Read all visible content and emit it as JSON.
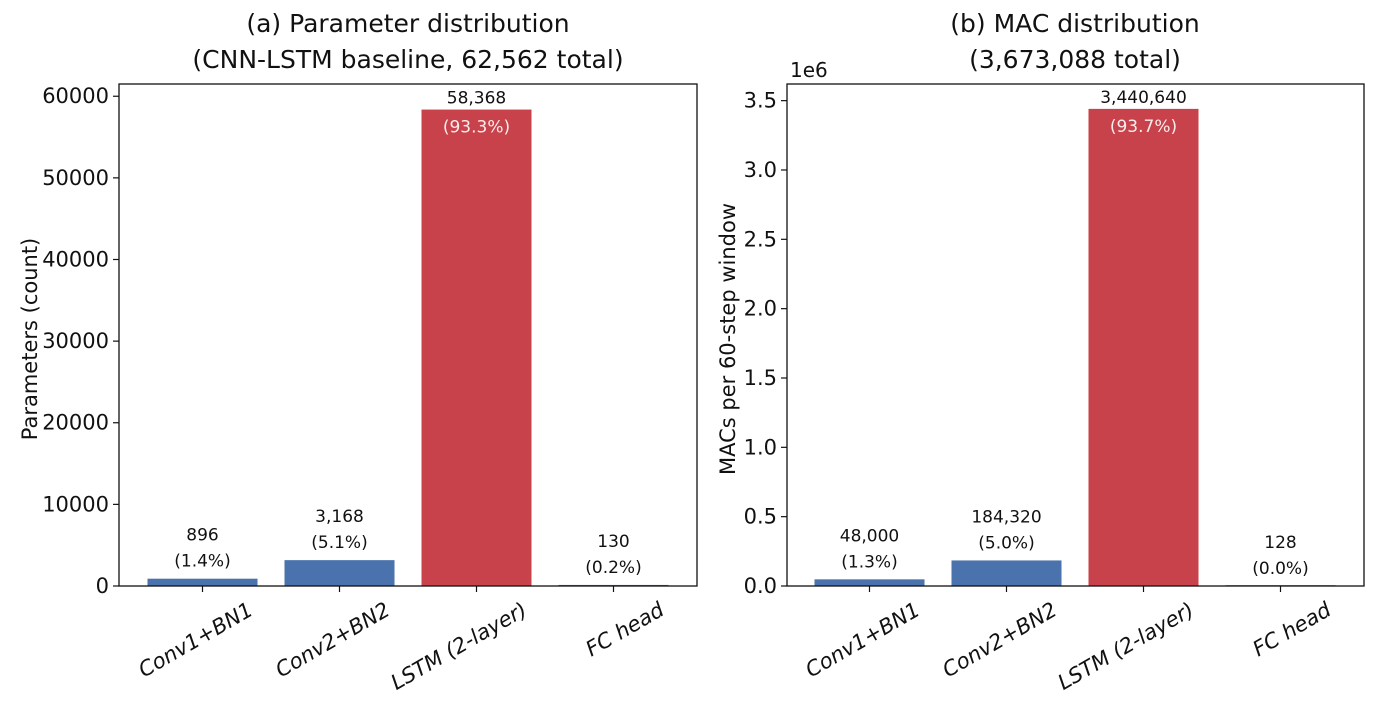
{
  "colors": {
    "conv": "#4a72ac",
    "lstm": "#c8424b",
    "fc": "#4a72ac"
  },
  "chart_data": [
    {
      "type": "bar",
      "title": "(a) Parameter distribution",
      "subtitle": "(CNN-LSTM baseline, 62,562 total)",
      "xlabel": "",
      "ylabel": "Parameters (count)",
      "categories": [
        "Conv1+BN1",
        "Conv2+BN2",
        "LSTM (2-layer)",
        "FC head"
      ],
      "values": [
        896,
        3168,
        58368,
        130
      ],
      "value_labels": [
        "896",
        "3,168",
        "58,368",
        "130"
      ],
      "percent_labels": [
        "(1.4%)",
        "(5.1%)",
        "(93.3%)",
        "(0.2%)"
      ],
      "ylim": [
        0,
        61500
      ],
      "yticks": [
        0,
        10000,
        20000,
        30000,
        40000,
        50000,
        60000
      ],
      "ytick_labels": [
        "0",
        "10000",
        "20000",
        "30000",
        "40000",
        "50000",
        "60000"
      ],
      "offset_text": ""
    },
    {
      "type": "bar",
      "title": "(b) MAC distribution",
      "subtitle": "(3,673,088 total)",
      "xlabel": "",
      "ylabel": "MACs per 60-step window",
      "categories": [
        "Conv1+BN1",
        "Conv2+BN2",
        "LSTM (2-layer)",
        "FC head"
      ],
      "values": [
        48000,
        184320,
        3440640,
        128
      ],
      "value_labels": [
        "48,000",
        "184,320",
        "3,440,640",
        "128"
      ],
      "percent_labels": [
        "(1.3%)",
        "(5.0%)",
        "(93.7%)",
        "(0.0%)"
      ],
      "ylim": [
        0,
        3620000
      ],
      "yticks": [
        0,
        500000,
        1000000,
        1500000,
        2000000,
        2500000,
        3000000,
        3500000
      ],
      "ytick_labels": [
        "0.0",
        "0.5",
        "1.0",
        "1.5",
        "2.0",
        "2.5",
        "3.0",
        "3.5"
      ],
      "offset_text": "1e6"
    }
  ]
}
